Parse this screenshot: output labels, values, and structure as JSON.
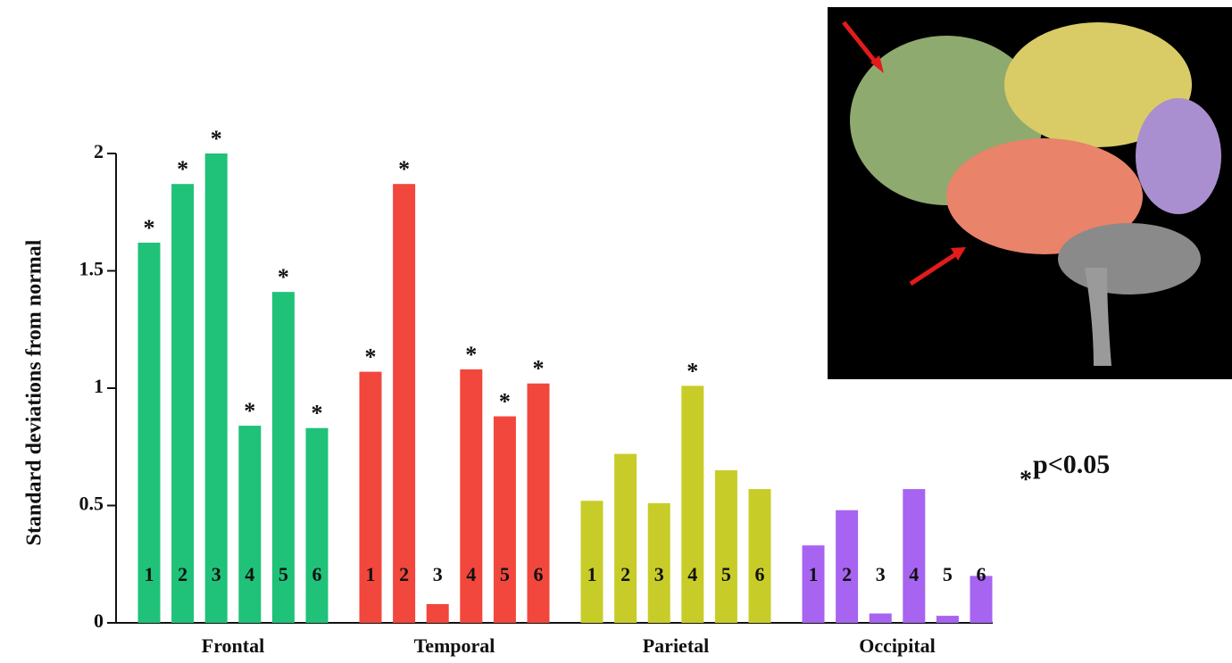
{
  "chart_data": {
    "type": "bar",
    "y_label": "Standard deviations from normal",
    "categories": [
      "1",
      "2",
      "3",
      "4",
      "5",
      "6"
    ],
    "series": [
      {
        "name": "Frontal",
        "color": "#1fc278",
        "values": [
          1.62,
          1.87,
          2.0,
          0.84,
          1.41,
          0.83
        ],
        "significant": [
          true,
          true,
          true,
          true,
          true,
          true
        ]
      },
      {
        "name": "Temporal",
        "color": "#f2473c",
        "values": [
          1.07,
          1.87,
          0.08,
          1.08,
          0.88,
          1.02
        ],
        "significant": [
          true,
          true,
          false,
          true,
          true,
          true
        ]
      },
      {
        "name": "Parietal",
        "color": "#c8cc28",
        "values": [
          0.52,
          0.72,
          0.51,
          1.01,
          0.65,
          0.57
        ],
        "significant": [
          false,
          false,
          false,
          true,
          false,
          false
        ]
      },
      {
        "name": "Occipital",
        "color": "#a764f0",
        "values": [
          0.33,
          0.48,
          0.04,
          0.57,
          0.03,
          0.2
        ],
        "significant": [
          false,
          false,
          false,
          false,
          false,
          false
        ]
      }
    ],
    "significance_marker": "*",
    "significance_note": "p<0.05",
    "ylim": [
      0,
      2
    ],
    "yticks": [
      0,
      0.5,
      1,
      1.5,
      2
    ]
  }
}
